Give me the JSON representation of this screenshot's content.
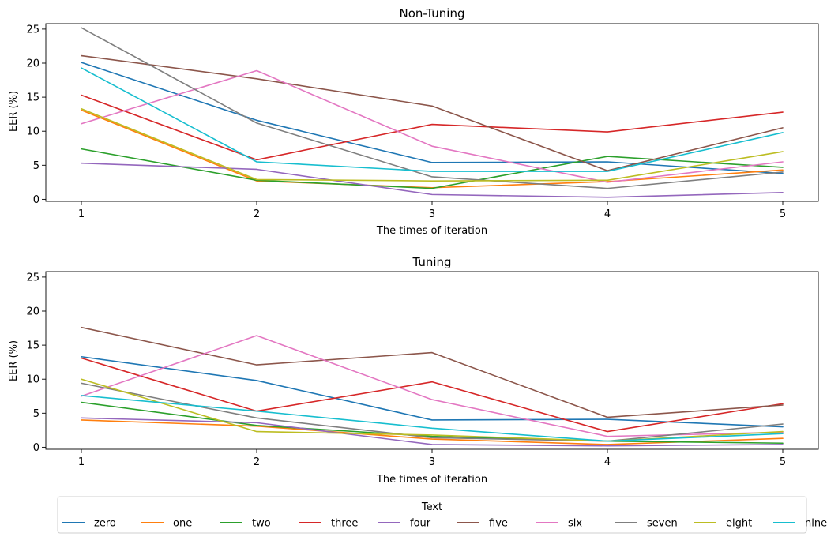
{
  "chart_data": [
    {
      "type": "line",
      "title": "Non-Tuning",
      "xlabel": "The times of iteration",
      "ylabel": "EER (%)",
      "x": [
        1,
        2,
        3,
        4,
        5
      ],
      "xticks": [
        "1",
        "2",
        "3",
        "4",
        "5"
      ],
      "yticks": [
        "0",
        "5",
        "10",
        "15",
        "20",
        "25"
      ],
      "ylim": [
        -0.3,
        25.8
      ],
      "grid": false,
      "series": [
        {
          "name": "zero",
          "color": "#1f77b4",
          "values": [
            20.1,
            11.6,
            5.4,
            5.5,
            3.8
          ]
        },
        {
          "name": "one",
          "color": "#ff7f0e",
          "values": [
            13.1,
            2.7,
            1.7,
            2.6,
            4.3
          ]
        },
        {
          "name": "two",
          "color": "#2ca02c",
          "values": [
            7.4,
            2.8,
            1.6,
            6.3,
            4.7
          ]
        },
        {
          "name": "three",
          "color": "#d62728",
          "values": [
            15.3,
            5.8,
            11.0,
            9.9,
            12.8
          ]
        },
        {
          "name": "four",
          "color": "#9467bd",
          "values": [
            5.3,
            4.4,
            0.7,
            0.3,
            1.0
          ]
        },
        {
          "name": "five",
          "color": "#8c564b",
          "values": [
            21.1,
            17.7,
            13.7,
            4.2,
            10.5
          ]
        },
        {
          "name": "six",
          "color": "#e377c2",
          "values": [
            11.1,
            18.9,
            7.8,
            2.5,
            5.5
          ]
        },
        {
          "name": "seven",
          "color": "#7f7f7f",
          "values": [
            25.2,
            11.2,
            3.3,
            1.6,
            4.0
          ]
        },
        {
          "name": "eight",
          "color": "#bcbd22",
          "values": [
            13.3,
            2.9,
            2.7,
            2.8,
            7.0
          ]
        },
        {
          "name": "nine",
          "color": "#17becf",
          "values": [
            19.3,
            5.5,
            4.1,
            4.1,
            9.8
          ]
        }
      ]
    },
    {
      "type": "line",
      "title": "Tuning",
      "xlabel": "The times of iteration",
      "ylabel": "EER (%)",
      "x": [
        1,
        2,
        3,
        4,
        5
      ],
      "xticks": [
        "1",
        "2",
        "3",
        "4",
        "5"
      ],
      "yticks": [
        "0",
        "5",
        "10",
        "15",
        "20",
        "25"
      ],
      "ylim": [
        -0.3,
        25.8
      ],
      "grid": false,
      "series": [
        {
          "name": "zero",
          "color": "#1f77b4",
          "values": [
            13.3,
            9.8,
            4.0,
            4.1,
            3.0
          ]
        },
        {
          "name": "one",
          "color": "#ff7f0e",
          "values": [
            4.0,
            3.1,
            1.2,
            0.4,
            1.3
          ]
        },
        {
          "name": "two",
          "color": "#2ca02c",
          "values": [
            6.6,
            3.2,
            1.6,
            0.9,
            0.6
          ]
        },
        {
          "name": "three",
          "color": "#d62728",
          "values": [
            13.1,
            5.3,
            9.6,
            2.3,
            6.4
          ]
        },
        {
          "name": "four",
          "color": "#9467bd",
          "values": [
            4.3,
            3.6,
            0.4,
            0.2,
            0.4
          ]
        },
        {
          "name": "five",
          "color": "#8c564b",
          "values": [
            17.6,
            12.1,
            13.9,
            4.4,
            6.2
          ]
        },
        {
          "name": "six",
          "color": "#e377c2",
          "values": [
            7.5,
            16.4,
            7.0,
            1.6,
            2.2
          ]
        },
        {
          "name": "seven",
          "color": "#7f7f7f",
          "values": [
            9.4,
            4.3,
            1.4,
            0.9,
            3.4
          ]
        },
        {
          "name": "eight",
          "color": "#bcbd22",
          "values": [
            10.0,
            2.3,
            1.8,
            0.9,
            2.3
          ]
        },
        {
          "name": "nine",
          "color": "#17becf",
          "values": [
            7.6,
            5.3,
            2.8,
            0.9,
            2.0
          ]
        }
      ]
    }
  ],
  "legend": {
    "title": "Text",
    "placement": "bottom-center",
    "items": [
      {
        "label": "zero",
        "color": "#1f77b4"
      },
      {
        "label": "one",
        "color": "#ff7f0e"
      },
      {
        "label": "two",
        "color": "#2ca02c"
      },
      {
        "label": "three",
        "color": "#d62728"
      },
      {
        "label": "four",
        "color": "#9467bd"
      },
      {
        "label": "five",
        "color": "#8c564b"
      },
      {
        "label": "six",
        "color": "#e377c2"
      },
      {
        "label": "seven",
        "color": "#7f7f7f"
      },
      {
        "label": "eight",
        "color": "#bcbd22"
      },
      {
        "label": "nine",
        "color": "#17becf"
      }
    ]
  }
}
